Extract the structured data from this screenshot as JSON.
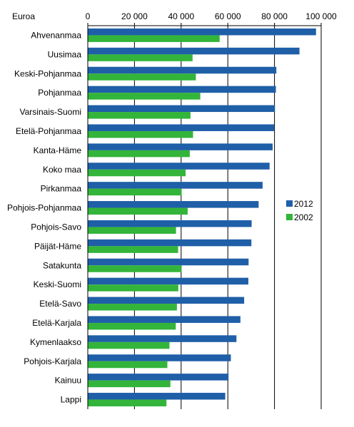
{
  "chart_data": {
    "type": "bar",
    "orientation": "horizontal",
    "title": "",
    "unit_label": "Euroa",
    "xlim": [
      0,
      100000
    ],
    "x_ticks": [
      0,
      20000,
      40000,
      60000,
      80000,
      100000
    ],
    "x_tick_labels": [
      "0",
      "20 000",
      "40 000",
      "60 000",
      "80 000",
      "100 000"
    ],
    "grid": "vertical",
    "legend_position": "right",
    "categories": [
      "Ahvenanmaa",
      "Uusimaa",
      "Keski-Pohjanmaa",
      "Pohjanmaa",
      "Varsinais-Suomi",
      "Etelä-Pohjanmaa",
      "Kanta-Häme",
      "Koko maa",
      "Pirkanmaa",
      "Pohjois-Pohjanmaa",
      "Pohjois-Savo",
      "Päijät-Häme",
      "Satakunta",
      "Keski-Suomi",
      "Etelä-Savo",
      "Etelä-Karjala",
      "Kymenlaakso",
      "Pohjois-Karjala",
      "Kainuu",
      "Lappi"
    ],
    "series": [
      {
        "name": "2012",
        "color": "#1f5fa8",
        "values": [
          97800,
          90700,
          80800,
          80600,
          80200,
          79800,
          79200,
          77900,
          74900,
          73200,
          70200,
          70100,
          68900,
          68800,
          67000,
          65400,
          63700,
          61300,
          60300,
          58900
        ]
      },
      {
        "name": "2002",
        "color": "#33b43a",
        "values": [
          56500,
          44900,
          46300,
          48200,
          44000,
          45100,
          43700,
          41900,
          40200,
          42800,
          37800,
          38700,
          40200,
          38800,
          38200,
          37700,
          35000,
          34100,
          35400,
          33700
        ]
      }
    ]
  }
}
